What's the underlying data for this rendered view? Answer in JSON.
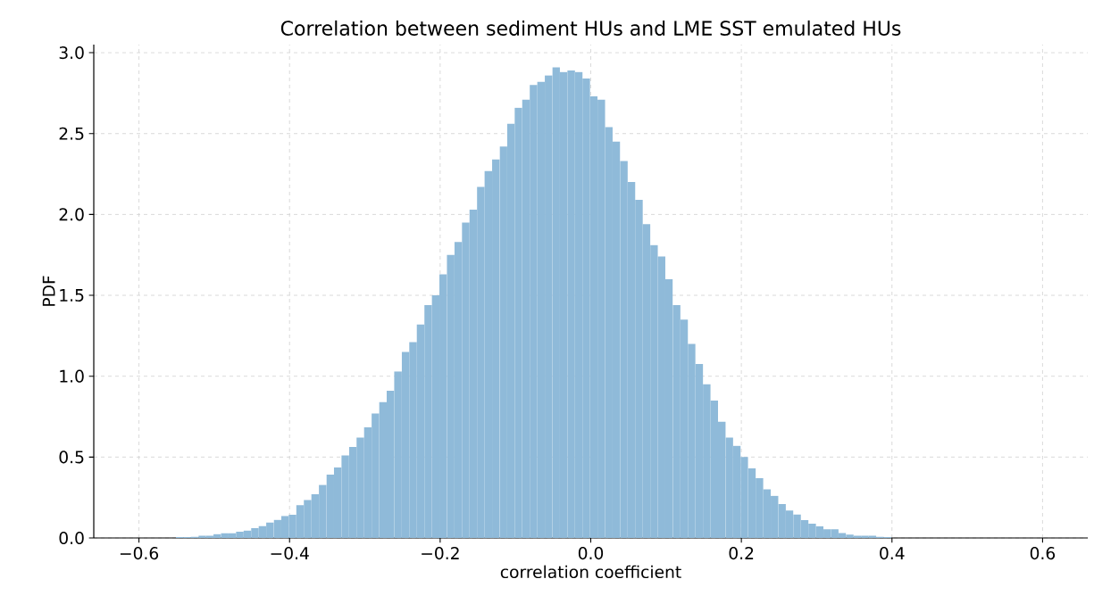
{
  "chart_data": {
    "type": "histogram",
    "title": "Correlation between sediment HUs and LME SST emulated HUs",
    "xlabel": "correlation coefficient",
    "ylabel": "PDF",
    "color": "#8fbad9",
    "grid": true,
    "bins": [
      -0.561,
      -0.551,
      -0.541,
      -0.531,
      -0.521,
      -0.511,
      -0.501,
      -0.491,
      -0.481,
      -0.471,
      -0.461,
      -0.451,
      -0.441,
      -0.431,
      -0.421,
      -0.411,
      -0.401,
      -0.391,
      -0.381,
      -0.371,
      -0.361,
      -0.351,
      -0.341,
      -0.331,
      -0.321,
      -0.311,
      -0.301,
      -0.291,
      -0.281,
      -0.271,
      -0.261,
      -0.251,
      -0.241,
      -0.231,
      -0.221,
      -0.211,
      -0.201,
      -0.191,
      -0.181,
      -0.171,
      -0.161,
      -0.151,
      -0.141,
      -0.131,
      -0.121,
      -0.111,
      -0.101,
      -0.091,
      -0.081,
      -0.071,
      -0.061,
      -0.051,
      -0.041,
      -0.031,
      -0.021,
      -0.011,
      -0.001,
      0.009,
      0.019,
      0.029,
      0.039,
      0.049,
      0.059,
      0.069,
      0.079,
      0.089,
      0.099,
      0.109,
      0.119,
      0.129,
      0.139,
      0.149,
      0.159,
      0.169,
      0.179,
      0.189,
      0.199,
      0.209,
      0.219,
      0.229,
      0.239,
      0.249,
      0.259,
      0.269,
      0.279,
      0.289,
      0.299,
      0.309,
      0.319,
      0.329,
      0.339,
      0.349,
      0.359,
      0.369,
      0.379,
      0.389,
      0.399,
      0.409,
      0.419,
      0.429,
      0.439
    ],
    "values": [
      null,
      0.005,
      0.005,
      0.007,
      0.014,
      0.014,
      0.023,
      0.029,
      0.029,
      0.038,
      0.045,
      0.06,
      0.073,
      0.095,
      0.112,
      0.137,
      0.143,
      0.202,
      0.235,
      0.27,
      0.328,
      0.392,
      0.436,
      0.51,
      0.562,
      0.62,
      0.684,
      0.77,
      0.84,
      0.91,
      1.03,
      1.15,
      1.21,
      1.32,
      1.44,
      1.5,
      1.63,
      1.75,
      1.83,
      1.95,
      2.03,
      2.17,
      2.27,
      2.34,
      2.42,
      2.56,
      2.66,
      2.71,
      2.8,
      2.82,
      2.86,
      2.91,
      2.88,
      2.89,
      2.88,
      2.84,
      2.73,
      2.71,
      2.54,
      2.45,
      2.33,
      2.2,
      2.09,
      1.94,
      1.81,
      1.74,
      1.6,
      1.44,
      1.35,
      1.2,
      1.075,
      0.95,
      0.85,
      0.72,
      0.62,
      0.57,
      0.5,
      0.43,
      0.37,
      0.3,
      0.26,
      0.21,
      0.17,
      0.145,
      0.11,
      0.088,
      0.071,
      0.054,
      0.054,
      0.03,
      0.021,
      0.014,
      0.014,
      0.014,
      0.007,
      0.005,
      null,
      null,
      0,
      null
    ],
    "xlim": [
      -0.66,
      0.66
    ],
    "ylim": [
      0,
      3.05
    ],
    "xticks": [
      {
        "value": -0.6,
        "label": "−0.6"
      },
      {
        "value": -0.4,
        "label": "−0.4"
      },
      {
        "value": -0.2,
        "label": "−0.2"
      },
      {
        "value": 0.0,
        "label": "0.0"
      },
      {
        "value": 0.2,
        "label": "0.2"
      },
      {
        "value": 0.4,
        "label": "0.4"
      },
      {
        "value": 0.6,
        "label": "0.6"
      }
    ],
    "yticks": [
      {
        "value": 0,
        "label": "0.0"
      },
      {
        "value": 0.5,
        "label": "0.5"
      },
      {
        "value": 1.0,
        "label": "1.0"
      },
      {
        "value": 1.5,
        "label": "1.5"
      },
      {
        "value": 2.0,
        "label": "2.0"
      },
      {
        "value": 2.5,
        "label": "2.5"
      },
      {
        "value": 3.0,
        "label": "3.0"
      }
    ]
  }
}
